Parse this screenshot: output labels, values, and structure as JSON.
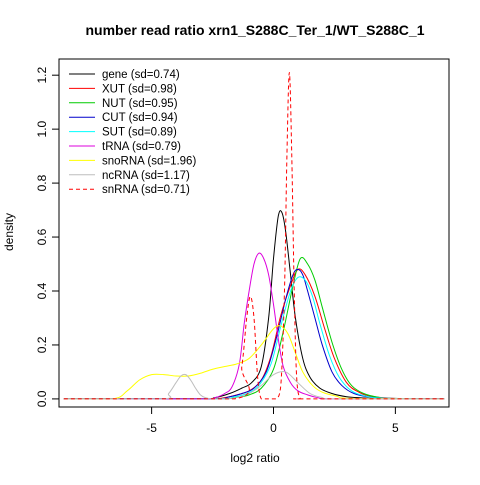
{
  "chart_data": {
    "type": "line",
    "title": "number read ratio xrn1_S288C_Ter_1/WT_S288C_1",
    "xlabel": "log2 ratio",
    "ylabel": "density",
    "xlim": [
      -8.8,
      7.2
    ],
    "ylim": [
      -0.03,
      1.26
    ],
    "xticks": [
      {
        "value": -5,
        "label": "-5"
      },
      {
        "value": 0,
        "label": "0"
      },
      {
        "value": 5,
        "label": "5"
      }
    ],
    "yticks": [
      {
        "value": 0.0,
        "label": "0.0"
      },
      {
        "value": 0.2,
        "label": "0.2"
      },
      {
        "value": 0.4,
        "label": "0.4"
      },
      {
        "value": 0.6,
        "label": "0.6"
      },
      {
        "value": 0.8,
        "label": "0.8"
      },
      {
        "value": 1.0,
        "label": "1.0"
      },
      {
        "value": 1.2,
        "label": "1.2"
      }
    ],
    "grid": false,
    "legend_position": "top-left",
    "series": [
      {
        "name": "gene (sd=0.74)",
        "color": "#000000",
        "dashed": false,
        "x": [
          -8.6,
          -3.2,
          -2.4,
          -1.8,
          -1.3,
          -0.9,
          -0.5,
          -0.2,
          0.0,
          0.2,
          0.35,
          0.5,
          0.7,
          0.9,
          1.2,
          1.5,
          1.9,
          2.4,
          3.0,
          3.6,
          4.5,
          7.0
        ],
        "y": [
          0.0,
          0.0,
          0.005,
          0.02,
          0.04,
          0.06,
          0.12,
          0.3,
          0.52,
          0.68,
          0.69,
          0.62,
          0.46,
          0.3,
          0.15,
          0.08,
          0.04,
          0.02,
          0.008,
          0.004,
          0.001,
          0.0
        ]
      },
      {
        "name": "XUT (sd=0.98)",
        "color": "#ff0000",
        "dashed": false,
        "x": [
          -8.6,
          -3.0,
          -2.0,
          -1.5,
          -1.0,
          -0.5,
          -0.1,
          0.3,
          0.7,
          1.0,
          1.3,
          1.7,
          2.1,
          2.5,
          3.0,
          3.5,
          4.0,
          5.0,
          7.0
        ],
        "y": [
          0.0,
          0.0,
          0.005,
          0.015,
          0.03,
          0.07,
          0.16,
          0.31,
          0.42,
          0.48,
          0.46,
          0.38,
          0.26,
          0.15,
          0.06,
          0.025,
          0.01,
          0.002,
          0.0
        ]
      },
      {
        "name": "NUT (sd=0.95)",
        "color": "#00cc00",
        "dashed": false,
        "x": [
          -8.6,
          -2.5,
          -1.5,
          -1.0,
          -0.5,
          0.0,
          0.4,
          0.8,
          1.1,
          1.4,
          1.7,
          2.0,
          2.4,
          2.8,
          3.2,
          3.7,
          4.3,
          5.0,
          7.0
        ],
        "y": [
          0.0,
          0.0,
          0.006,
          0.015,
          0.04,
          0.11,
          0.25,
          0.42,
          0.52,
          0.5,
          0.44,
          0.34,
          0.21,
          0.11,
          0.05,
          0.02,
          0.006,
          0.001,
          0.0
        ]
      },
      {
        "name": "CUT (sd=0.94)",
        "color": "#0000cc",
        "dashed": false,
        "x": [
          -8.6,
          -2.8,
          -1.8,
          -1.3,
          -0.8,
          -0.3,
          0.1,
          0.5,
          0.8,
          1.0,
          1.2,
          1.4,
          1.7,
          2.0,
          2.4,
          2.8,
          3.3,
          4.0,
          5.0,
          7.0
        ],
        "y": [
          0.0,
          0.0,
          0.008,
          0.02,
          0.04,
          0.1,
          0.22,
          0.37,
          0.46,
          0.48,
          0.46,
          0.4,
          0.3,
          0.2,
          0.1,
          0.05,
          0.02,
          0.006,
          0.001,
          0.0
        ]
      },
      {
        "name": "SUT (sd=0.89)",
        "color": "#00ffff",
        "dashed": false,
        "x": [
          -8.6,
          -2.6,
          -1.6,
          -1.1,
          -0.6,
          -0.1,
          0.3,
          0.7,
          1.0,
          1.3,
          1.6,
          1.9,
          2.3,
          2.7,
          3.2,
          3.8,
          4.5,
          7.0
        ],
        "y": [
          0.0,
          0.0,
          0.008,
          0.02,
          0.05,
          0.13,
          0.27,
          0.4,
          0.45,
          0.44,
          0.38,
          0.28,
          0.16,
          0.08,
          0.03,
          0.01,
          0.003,
          0.0
        ]
      },
      {
        "name": "tRNA (sd=0.79)",
        "color": "#dd00dd",
        "dashed": false,
        "x": [
          -8.6,
          -3.0,
          -2.4,
          -2.0,
          -1.7,
          -1.4,
          -1.2,
          -1.0,
          -0.8,
          -0.6,
          -0.4,
          -0.2,
          0.0,
          0.2,
          0.4,
          0.7,
          1.0,
          1.4,
          1.8,
          2.5,
          7.0
        ],
        "y": [
          0.0,
          0.0,
          0.005,
          0.02,
          0.045,
          0.13,
          0.28,
          0.4,
          0.5,
          0.54,
          0.52,
          0.46,
          0.35,
          0.22,
          0.12,
          0.06,
          0.03,
          0.015,
          0.005,
          0.0,
          0.0
        ]
      },
      {
        "name": "snoRNA (sd=1.96)",
        "color": "#ffff00",
        "dashed": false,
        "x": [
          -8.6,
          -6.6,
          -6.0,
          -5.5,
          -5.0,
          -4.5,
          -4.0,
          -3.5,
          -3.0,
          -2.5,
          -2.0,
          -1.5,
          -1.0,
          -0.5,
          0.0,
          0.3,
          0.6,
          0.9,
          1.2,
          1.6,
          2.0,
          2.6,
          3.2,
          7.0
        ],
        "y": [
          0.0,
          0.0,
          0.03,
          0.07,
          0.09,
          0.09,
          0.085,
          0.085,
          0.095,
          0.11,
          0.12,
          0.13,
          0.15,
          0.2,
          0.26,
          0.27,
          0.24,
          0.17,
          0.1,
          0.05,
          0.025,
          0.01,
          0.002,
          0.0
        ]
      },
      {
        "name": "ncRNA (sd=1.17)",
        "color": "#bebebe",
        "dashed": false,
        "x": [
          -8.6,
          -4.6,
          -4.3,
          -4.0,
          -3.8,
          -3.6,
          -3.4,
          -3.2,
          -3.0,
          -2.8,
          -2.5,
          -2.0,
          -1.5,
          -1.0,
          -0.5,
          0.0,
          0.5,
          1.0,
          1.5,
          2.0,
          2.5,
          7.0
        ],
        "y": [
          0.0,
          0.0,
          0.02,
          0.06,
          0.085,
          0.09,
          0.07,
          0.04,
          0.015,
          0.005,
          0.0,
          0.0,
          0.005,
          0.02,
          0.05,
          0.09,
          0.1,
          0.06,
          0.02,
          0.005,
          0.0,
          0.0
        ]
      },
      {
        "name": "snRNA (sd=0.71)",
        "color": "#ff0000",
        "dashed": true,
        "x": [
          -8.6,
          -1.6,
          -1.3,
          -1.1,
          -0.95,
          -0.8,
          -0.65,
          -0.5,
          -0.2,
          0.1,
          0.3,
          0.45,
          0.55,
          0.65,
          0.75,
          0.85,
          0.95,
          1.1,
          1.3,
          7.0
        ],
        "y": [
          0.0,
          0.0,
          0.12,
          0.3,
          0.38,
          0.3,
          0.08,
          0.0,
          0.0,
          0.0,
          0.05,
          0.4,
          0.9,
          1.21,
          0.9,
          0.4,
          0.08,
          0.0,
          0.0,
          0.0
        ]
      }
    ]
  }
}
